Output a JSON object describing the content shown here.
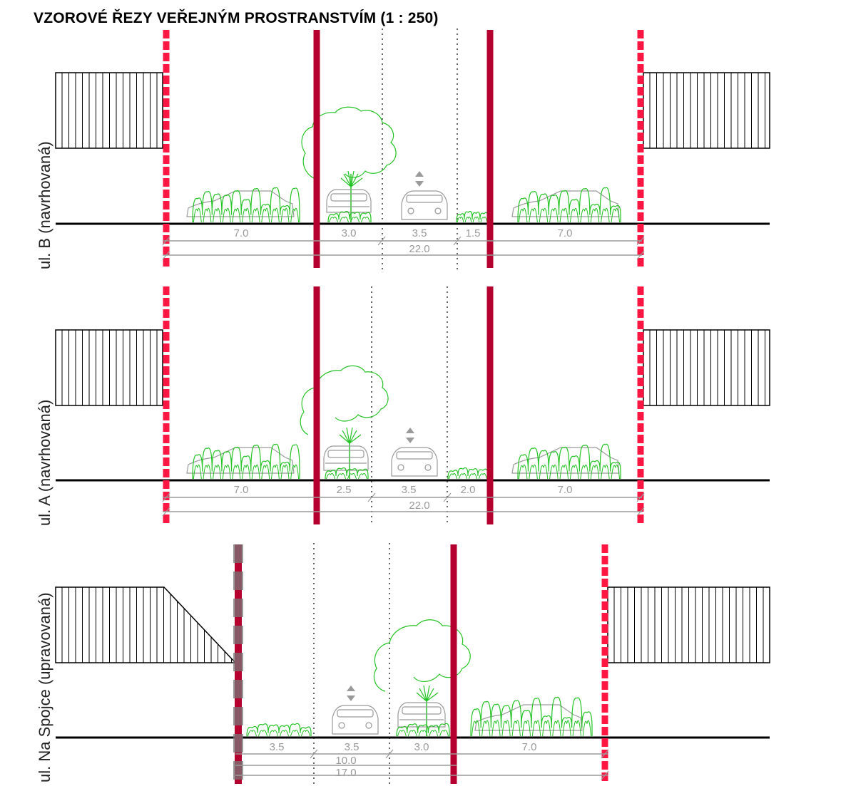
{
  "title": "VZOROVÉ ŘEZY VEŘEJNÝM PROSTRANSTVÍM (1 : 250)",
  "colors": {
    "boundary_dashed": "#ff1744",
    "street_line": "#b5002f",
    "vegetation": "#22c322",
    "cars": "#9a9a9a",
    "dimension": "#9a9a9a",
    "ground": "#000000"
  },
  "sections": [
    {
      "label": "ul. B  (navrhovaná)",
      "dims": [
        "7.0",
        "3.0",
        "3.5",
        "1.5",
        "7.0"
      ],
      "total": "22.0"
    },
    {
      "label": "ul. A  (navrhovaná)",
      "dims": [
        "7.0",
        "2.5",
        "3.5",
        "2.0",
        "7.0"
      ],
      "total": "22.0"
    },
    {
      "label": "ul. Na Spojce (upravovaná)",
      "dims": [
        "3.5",
        "3.5",
        "3.0",
        "7.0"
      ],
      "subtotal": "10.0",
      "total": "17.0"
    }
  ]
}
